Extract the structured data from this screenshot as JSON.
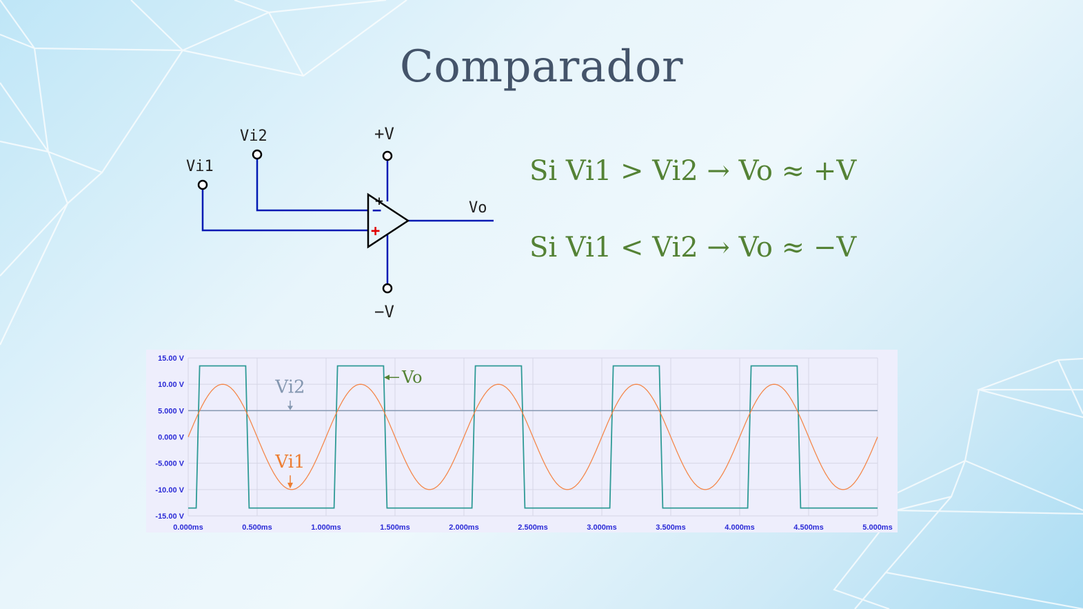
{
  "slide": {
    "title": "Comparador",
    "rules": [
      "Si Vi1 > Vi2 → Vo ≈ +V",
      "Si Vi1 < Vi2 → Vo ≈ −V"
    ]
  },
  "circuit": {
    "labels": {
      "vi1": "Vi1",
      "vi2": "Vi2",
      "vplus": "+V",
      "vminus": "−V",
      "vo": "Vo",
      "inv_sign": "−",
      "noninv_sign": "+",
      "supply_sign": "+"
    },
    "colors": {
      "wire": "#0019b3",
      "plus": "#e00000",
      "black": "#000000"
    }
  },
  "chart_data": {
    "type": "line",
    "x_ticks": [
      "0.000ms",
      "0.500ms",
      "1.000ms",
      "1.500ms",
      "2.000ms",
      "2.500ms",
      "3.000ms",
      "3.500ms",
      "4.000ms",
      "4.500ms",
      "5.000ms"
    ],
    "y_ticks": [
      "15.00 V",
      "10.00 V",
      "5.000 V",
      "0.000 V",
      "-5.000 V",
      "-10.00 V",
      "-15.00 V"
    ],
    "xlim": [
      0,
      5
    ],
    "ylim": [
      -15,
      15
    ],
    "x_unit": "ms",
    "grid": true,
    "series": [
      {
        "name": "Vi1",
        "kind": "sine",
        "amplitude": 10,
        "period_ms": 1.0,
        "offset": 0,
        "color": "#f4874b"
      },
      {
        "name": "Vi2",
        "kind": "constant",
        "value": 5,
        "color": "#8497b0"
      },
      {
        "name": "Vo",
        "kind": "square",
        "high": 13.5,
        "low": -13.5,
        "color": "#2e9a96",
        "high_intervals_ms": [
          [
            0.083,
            0.417
          ],
          [
            1.083,
            1.417
          ],
          [
            2.083,
            2.417
          ],
          [
            3.083,
            3.417
          ],
          [
            4.083,
            4.417
          ]
        ]
      }
    ],
    "annotations": [
      {
        "text": "Vi2",
        "color": "#8497b0"
      },
      {
        "text": "Vi1",
        "color": "#ed7d31"
      },
      {
        "text": "Vo",
        "color": "#548235"
      }
    ]
  }
}
